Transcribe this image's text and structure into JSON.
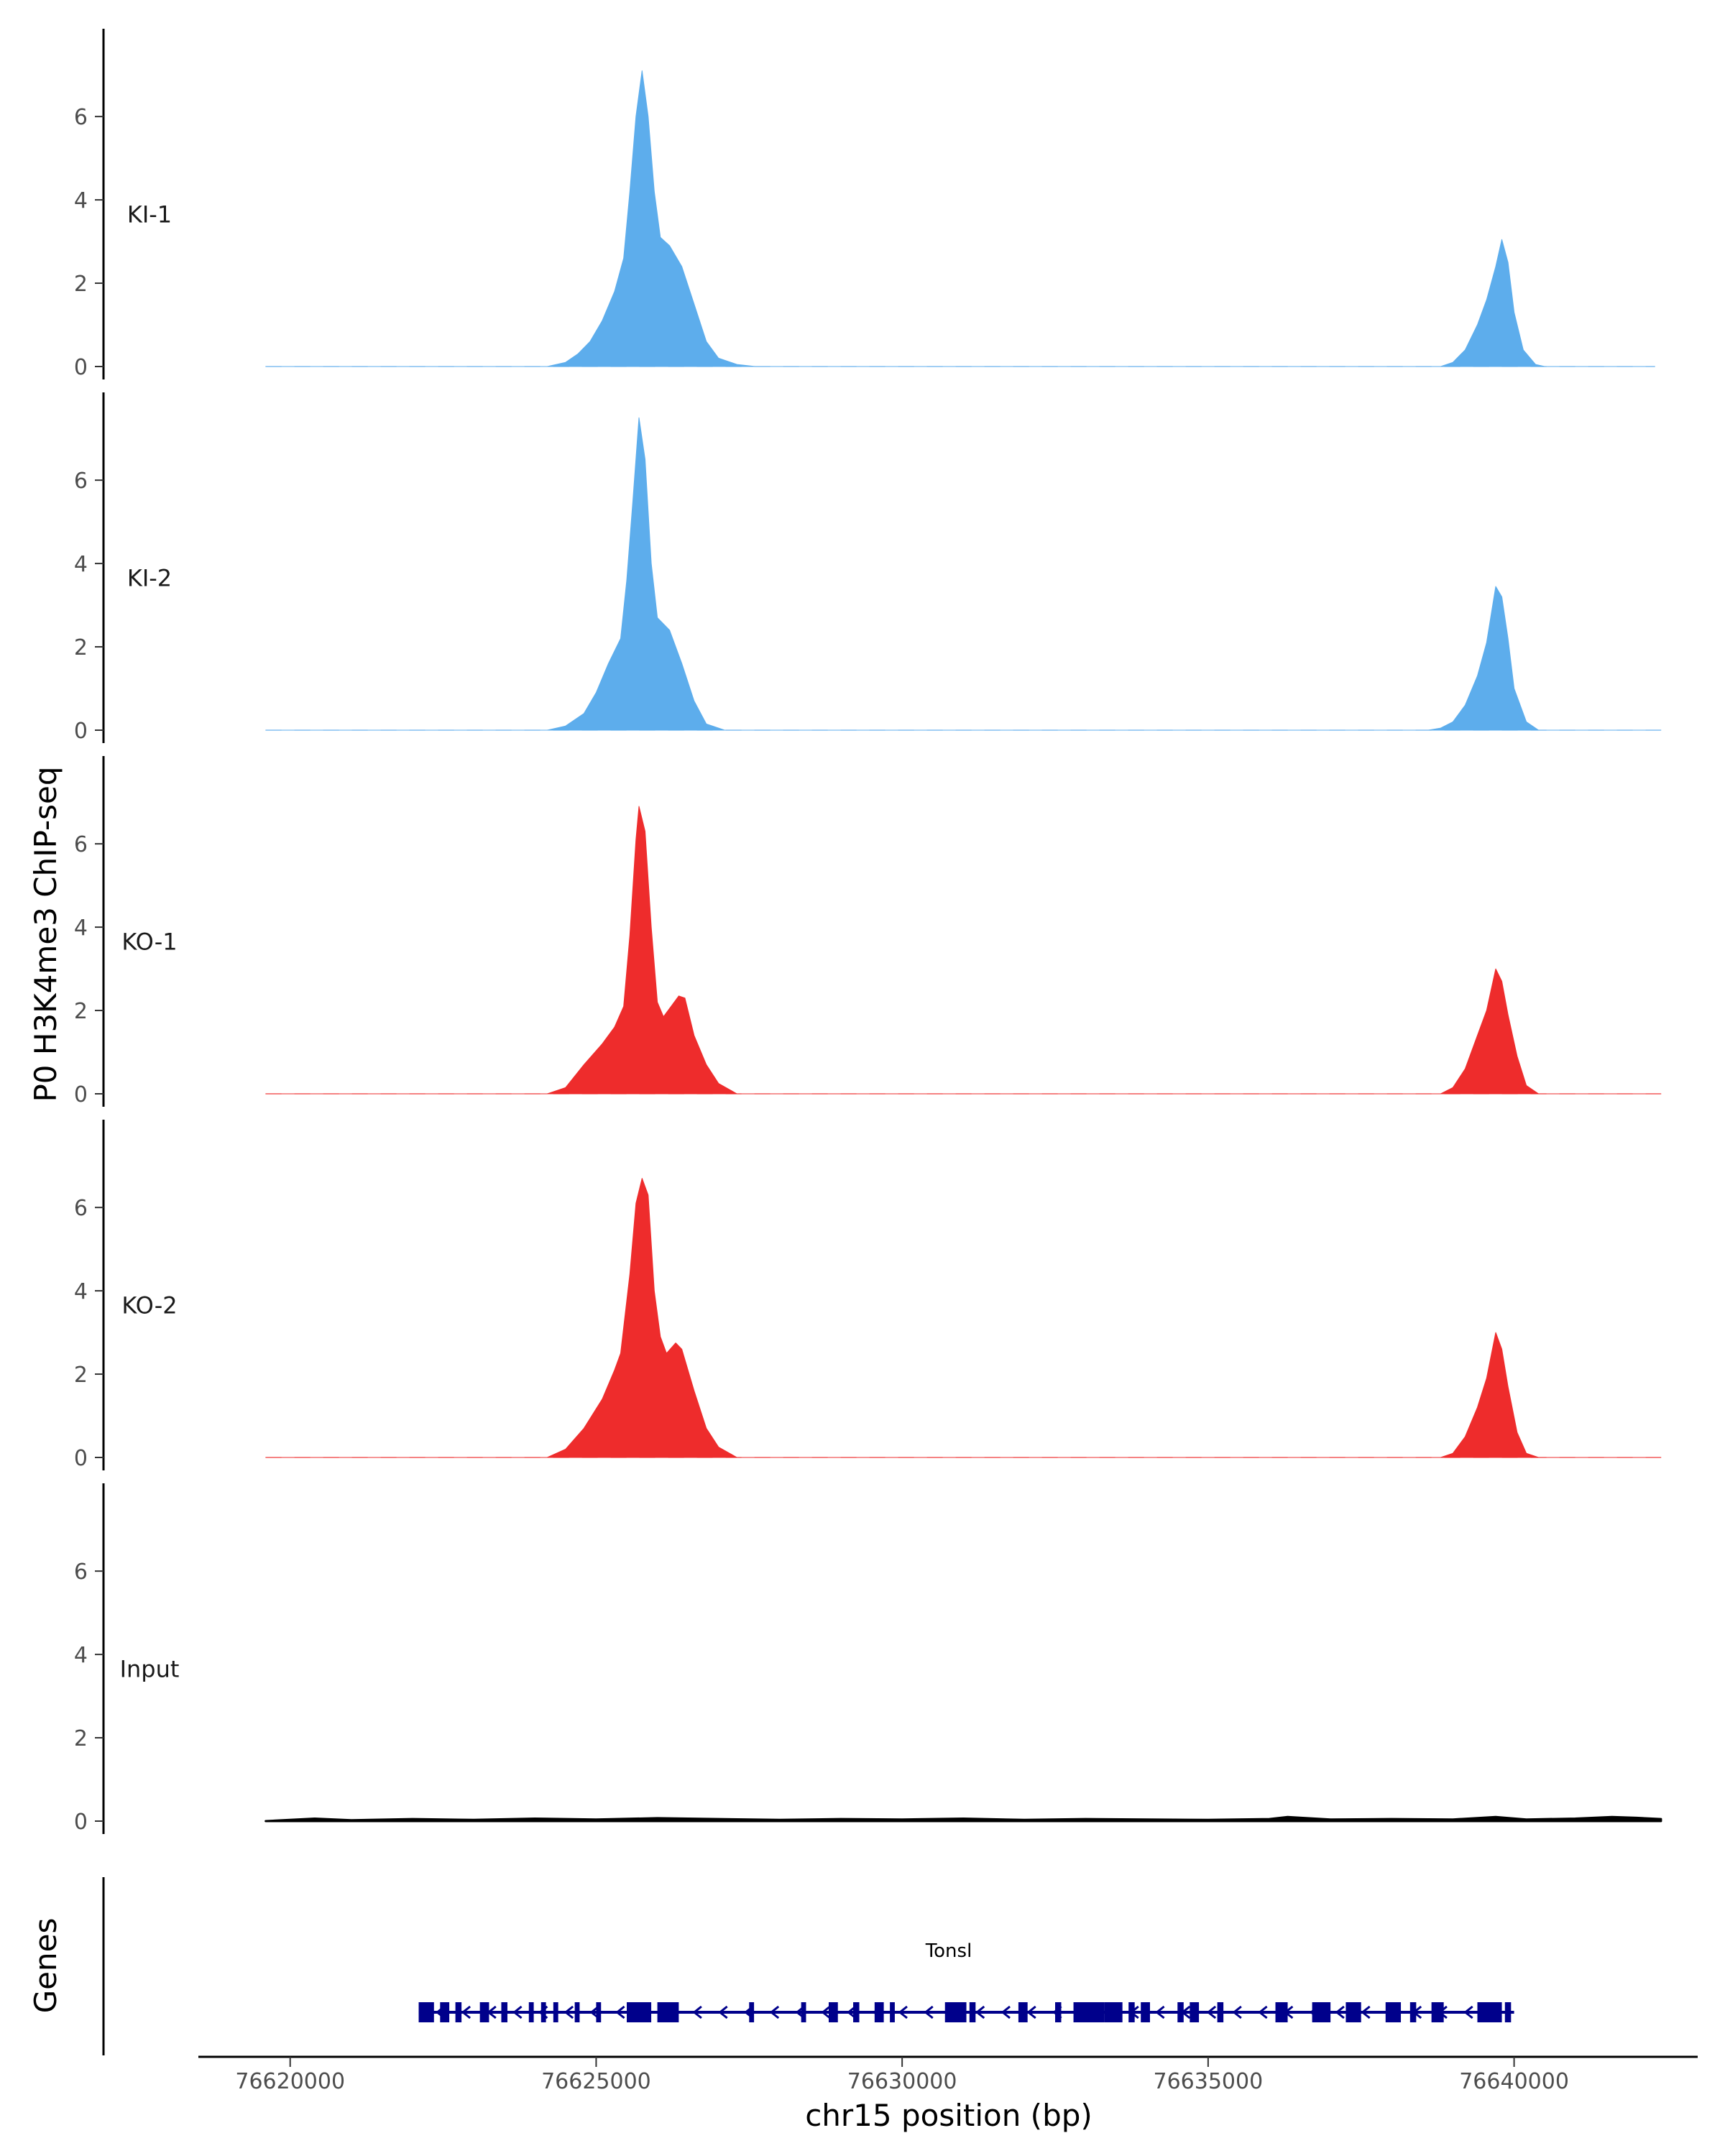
{
  "chart_data": {
    "type": "area",
    "ylabel": "P0 H3K4me3 ChIP-seq",
    "xlabel": "chr15 position (bp)",
    "genes_label": "Genes",
    "gene_name": "Tonsl",
    "xlim": [
      76618500,
      76643000
    ],
    "ylim": [
      0,
      7.9
    ],
    "x_ticks": [
      76620000,
      76625000,
      76630000,
      76635000,
      76640000
    ],
    "x_tick_labels": [
      "76620000",
      "76625000",
      "76630000",
      "76635000",
      "76640000"
    ],
    "y_ticks": [
      0,
      2,
      4,
      6
    ],
    "y_tick_labels": [
      "0",
      "2",
      "4",
      "6"
    ],
    "series_colors": {
      "KI": "#5DADEC",
      "KO": "#EE2C2C",
      "Input": "#000000",
      "gene": "#00008B"
    },
    "series": [
      {
        "name": "KI-1",
        "color": "#5DADEC",
        "points": [
          [
            76619600,
            0
          ],
          [
            76624200,
            0
          ],
          [
            76624500,
            0.1
          ],
          [
            76624700,
            0.3
          ],
          [
            76624900,
            0.6
          ],
          [
            76625100,
            1.1
          ],
          [
            76625300,
            1.8
          ],
          [
            76625450,
            2.6
          ],
          [
            76625550,
            4.2
          ],
          [
            76625650,
            6.0
          ],
          [
            76625750,
            7.1
          ],
          [
            76625850,
            6.0
          ],
          [
            76625950,
            4.2
          ],
          [
            76626050,
            3.1
          ],
          [
            76626200,
            2.9
          ],
          [
            76626400,
            2.4
          ],
          [
            76626600,
            1.5
          ],
          [
            76626800,
            0.6
          ],
          [
            76627000,
            0.2
          ],
          [
            76627300,
            0.05
          ],
          [
            76627600,
            0
          ],
          [
            76638800,
            0
          ],
          [
            76639000,
            0.1
          ],
          [
            76639200,
            0.4
          ],
          [
            76639400,
            1.0
          ],
          [
            76639550,
            1.6
          ],
          [
            76639700,
            2.4
          ],
          [
            76639800,
            3.05
          ],
          [
            76639900,
            2.5
          ],
          [
            76640000,
            1.3
          ],
          [
            76640150,
            0.4
          ],
          [
            76640350,
            0.05
          ],
          [
            76640500,
            0
          ],
          [
            76642300,
            0
          ]
        ]
      },
      {
        "name": "KI-2",
        "color": "#5DADEC",
        "points": [
          [
            76619600,
            0
          ],
          [
            76624200,
            0
          ],
          [
            76624500,
            0.1
          ],
          [
            76624800,
            0.4
          ],
          [
            76625000,
            0.9
          ],
          [
            76625200,
            1.6
          ],
          [
            76625400,
            2.2
          ],
          [
            76625500,
            3.6
          ],
          [
            76625600,
            5.5
          ],
          [
            76625700,
            7.5
          ],
          [
            76625800,
            6.5
          ],
          [
            76625900,
            4.0
          ],
          [
            76626000,
            2.7
          ],
          [
            76626200,
            2.4
          ],
          [
            76626400,
            1.6
          ],
          [
            76626600,
            0.7
          ],
          [
            76626800,
            0.15
          ],
          [
            76627100,
            0
          ],
          [
            76638600,
            0
          ],
          [
            76638800,
            0.05
          ],
          [
            76639000,
            0.2
          ],
          [
            76639200,
            0.6
          ],
          [
            76639400,
            1.3
          ],
          [
            76639550,
            2.1
          ],
          [
            76639700,
            3.45
          ],
          [
            76639800,
            3.2
          ],
          [
            76639900,
            2.2
          ],
          [
            76640000,
            1.0
          ],
          [
            76640200,
            0.2
          ],
          [
            76640400,
            0
          ],
          [
            76642400,
            0
          ]
        ]
      },
      {
        "name": "KO-1",
        "color": "#EE2C2C",
        "points": [
          [
            76619600,
            0
          ],
          [
            76624200,
            0
          ],
          [
            76624500,
            0.15
          ],
          [
            76624800,
            0.7
          ],
          [
            76625100,
            1.2
          ],
          [
            76625300,
            1.6
          ],
          [
            76625450,
            2.1
          ],
          [
            76625550,
            3.8
          ],
          [
            76625650,
            6.1
          ],
          [
            76625700,
            6.9
          ],
          [
            76625800,
            6.3
          ],
          [
            76625900,
            4.0
          ],
          [
            76626000,
            2.2
          ],
          [
            76626100,
            1.85
          ],
          [
            76626200,
            2.05
          ],
          [
            76626350,
            2.35
          ],
          [
            76626450,
            2.3
          ],
          [
            76626600,
            1.4
          ],
          [
            76626800,
            0.7
          ],
          [
            76627000,
            0.25
          ],
          [
            76627300,
            0
          ],
          [
            76638800,
            0
          ],
          [
            76639000,
            0.15
          ],
          [
            76639200,
            0.6
          ],
          [
            76639400,
            1.4
          ],
          [
            76639550,
            2.0
          ],
          [
            76639700,
            3.0
          ],
          [
            76639800,
            2.7
          ],
          [
            76639900,
            1.9
          ],
          [
            76640050,
            0.9
          ],
          [
            76640200,
            0.2
          ],
          [
            76640400,
            0
          ],
          [
            76642400,
            0
          ]
        ]
      },
      {
        "name": "KO-2",
        "color": "#EE2C2C",
        "points": [
          [
            76619600,
            0
          ],
          [
            76624200,
            0
          ],
          [
            76624500,
            0.2
          ],
          [
            76624800,
            0.7
          ],
          [
            76625100,
            1.4
          ],
          [
            76625300,
            2.1
          ],
          [
            76625400,
            2.5
          ],
          [
            76625550,
            4.4
          ],
          [
            76625650,
            6.1
          ],
          [
            76625750,
            6.7
          ],
          [
            76625850,
            6.3
          ],
          [
            76625950,
            4.0
          ],
          [
            76626050,
            2.9
          ],
          [
            76626150,
            2.5
          ],
          [
            76626300,
            2.75
          ],
          [
            76626400,
            2.6
          ],
          [
            76626600,
            1.6
          ],
          [
            76626800,
            0.7
          ],
          [
            76627000,
            0.25
          ],
          [
            76627300,
            0
          ],
          [
            76638800,
            0
          ],
          [
            76639000,
            0.1
          ],
          [
            76639200,
            0.5
          ],
          [
            76639400,
            1.2
          ],
          [
            76639550,
            1.9
          ],
          [
            76639700,
            3.0
          ],
          [
            76639800,
            2.6
          ],
          [
            76639900,
            1.7
          ],
          [
            76640050,
            0.6
          ],
          [
            76640200,
            0.1
          ],
          [
            76640400,
            0
          ],
          [
            76642400,
            0
          ]
        ]
      },
      {
        "name": "Input",
        "color": "#000000",
        "points": [
          [
            76619600,
            0
          ],
          [
            76620400,
            0.06
          ],
          [
            76621000,
            0.02
          ],
          [
            76622000,
            0.05
          ],
          [
            76623000,
            0.03
          ],
          [
            76624000,
            0.06
          ],
          [
            76625000,
            0.04
          ],
          [
            76626000,
            0.07
          ],
          [
            76627000,
            0.05
          ],
          [
            76628000,
            0.03
          ],
          [
            76629000,
            0.05
          ],
          [
            76630000,
            0.04
          ],
          [
            76631000,
            0.06
          ],
          [
            76632000,
            0.03
          ],
          [
            76633000,
            0.05
          ],
          [
            76634000,
            0.04
          ],
          [
            76635000,
            0.03
          ],
          [
            76636000,
            0.05
          ],
          [
            76636300,
            0.1
          ],
          [
            76637000,
            0.04
          ],
          [
            76638000,
            0.05
          ],
          [
            76639000,
            0.04
          ],
          [
            76639700,
            0.1
          ],
          [
            76640200,
            0.04
          ],
          [
            76641000,
            0.06
          ],
          [
            76641600,
            0.1
          ],
          [
            76642000,
            0.08
          ],
          [
            76642400,
            0.05
          ]
        ]
      }
    ],
    "gene_model": {
      "start": 76622100,
      "end": 76640000,
      "strand": "-",
      "exons": [
        [
          76622100,
          76622350
        ],
        [
          76622450,
          76622600
        ],
        [
          76622700,
          76622800
        ],
        [
          76623100,
          76623250
        ],
        [
          76623450,
          76623550
        ],
        [
          76623900,
          76623980
        ],
        [
          76624100,
          76624180
        ],
        [
          76624300,
          76624380
        ],
        [
          76624650,
          76624730
        ],
        [
          76625000,
          76625080
        ],
        [
          76625500,
          76625900
        ],
        [
          76626000,
          76626350
        ],
        [
          76627500,
          76627580
        ],
        [
          76628350,
          76628430
        ],
        [
          76628800,
          76628950
        ],
        [
          76629200,
          76629300
        ],
        [
          76629550,
          76629700
        ],
        [
          76629800,
          76629880
        ],
        [
          76630700,
          76631050
        ],
        [
          76631100,
          76631200
        ],
        [
          76631900,
          76632050
        ],
        [
          76632500,
          76632600
        ],
        [
          76632800,
          76633300
        ],
        [
          76633300,
          76633600
        ],
        [
          76633700,
          76633800
        ],
        [
          76633900,
          76634050
        ],
        [
          76634500,
          76634600
        ],
        [
          76634700,
          76634850
        ],
        [
          76635150,
          76635250
        ],
        [
          76636100,
          76636300
        ],
        [
          76636700,
          76637000
        ],
        [
          76637250,
          76637500
        ],
        [
          76637900,
          76638150
        ],
        [
          76638300,
          76638400
        ],
        [
          76638650,
          76638850
        ],
        [
          76639400,
          76639800
        ],
        [
          76639850,
          76639950
        ]
      ]
    }
  }
}
